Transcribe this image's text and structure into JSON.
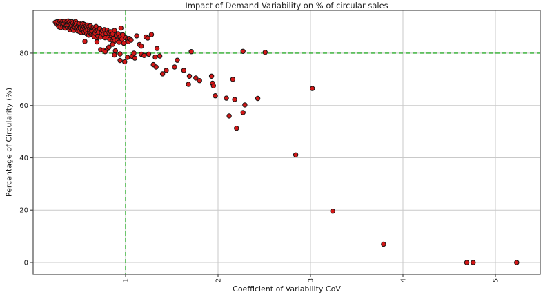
{
  "chart_data": {
    "type": "scatter",
    "title": "Impact of Demand Variability on % of circular sales",
    "xlabel": "Coefficient of Variability CoV",
    "ylabel": "Percentage of Circularity (%)",
    "x_ticks": [
      1,
      2,
      3,
      4,
      5
    ],
    "y_ticks": [
      0,
      20,
      40,
      60,
      80
    ],
    "xlim": [
      0.0,
      5.485
    ],
    "ylim": [
      -4.49,
      96.35
    ],
    "grid": true,
    "legend": "none",
    "x_tick_rotation": "vertical",
    "reference_lines": [
      {
        "orientation": "vertical",
        "x": 1,
        "style": "dashed"
      },
      {
        "orientation": "horizontal",
        "y": 80,
        "style": "dashed"
      }
    ],
    "colors": {
      "marker_fill": "#d31717",
      "marker_edge": "#141414",
      "reference_line": "#2fae2f",
      "grid": "#c9c9c9",
      "spine": "#4c4c4c",
      "text": "#1c1c1c"
    },
    "points": [
      [
        0.24,
        91.8
      ],
      [
        0.25,
        91.2
      ],
      [
        0.26,
        92.0
      ],
      [
        0.27,
        90.6
      ],
      [
        0.28,
        91.5
      ],
      [
        0.28,
        90.1
      ],
      [
        0.29,
        92.2
      ],
      [
        0.3,
        91.0
      ],
      [
        0.3,
        89.8
      ],
      [
        0.31,
        91.7
      ],
      [
        0.32,
        90.4
      ],
      [
        0.32,
        92.0
      ],
      [
        0.33,
        91.3
      ],
      [
        0.34,
        90.2
      ],
      [
        0.34,
        92.1
      ],
      [
        0.35,
        91.0
      ],
      [
        0.35,
        89.6
      ],
      [
        0.36,
        91.8
      ],
      [
        0.36,
        90.5
      ],
      [
        0.37,
        91.4
      ],
      [
        0.37,
        89.9
      ],
      [
        0.38,
        92.3
      ],
      [
        0.38,
        90.8
      ],
      [
        0.39,
        91.6
      ],
      [
        0.39,
        89.3
      ],
      [
        0.4,
        90.9
      ],
      [
        0.4,
        92.0
      ],
      [
        0.4,
        88.9
      ],
      [
        0.41,
        91.2
      ],
      [
        0.41,
        89.7
      ],
      [
        0.42,
        90.6
      ],
      [
        0.42,
        92.0
      ],
      [
        0.43,
        89.2
      ],
      [
        0.43,
        91.5
      ],
      [
        0.44,
        90.1
      ],
      [
        0.44,
        88.7
      ],
      [
        0.45,
        91.0
      ],
      [
        0.45,
        89.9
      ],
      [
        0.46,
        90.7
      ],
      [
        0.46,
        92.1
      ],
      [
        0.47,
        89.4
      ],
      [
        0.47,
        91.3
      ],
      [
        0.48,
        90.0
      ],
      [
        0.48,
        88.5
      ],
      [
        0.49,
        90.8
      ],
      [
        0.49,
        89.1
      ],
      [
        0.5,
        91.4
      ],
      [
        0.5,
        88.3
      ],
      [
        0.51,
        90.2
      ],
      [
        0.51,
        89.6
      ],
      [
        0.52,
        91.0
      ],
      [
        0.52,
        87.9
      ],
      [
        0.53,
        90.5
      ],
      [
        0.53,
        88.8
      ],
      [
        0.54,
        91.2
      ],
      [
        0.54,
        89.3
      ],
      [
        0.55,
        90.0
      ],
      [
        0.55,
        88.1
      ],
      [
        0.56,
        90.9
      ],
      [
        0.56,
        89.5
      ],
      [
        0.57,
        90.3
      ],
      [
        0.57,
        88.6
      ],
      [
        0.58,
        89.9
      ],
      [
        0.58,
        87.4
      ],
      [
        0.59,
        90.7
      ],
      [
        0.59,
        88.9
      ],
      [
        0.6,
        90.1
      ],
      [
        0.6,
        86.9
      ],
      [
        0.61,
        89.5
      ],
      [
        0.61,
        88.2
      ],
      [
        0.62,
        90.4
      ],
      [
        0.62,
        87.7
      ],
      [
        0.63,
        89.0
      ],
      [
        0.63,
        87.2
      ],
      [
        0.64,
        89.8
      ],
      [
        0.64,
        88.4
      ],
      [
        0.65,
        89.6
      ],
      [
        0.65,
        87.0
      ],
      [
        0.66,
        88.8
      ],
      [
        0.66,
        86.3
      ],
      [
        0.67,
        89.3
      ],
      [
        0.67,
        87.6
      ],
      [
        0.68,
        88.5
      ],
      [
        0.68,
        90.2
      ],
      [
        0.69,
        87.1
      ],
      [
        0.69,
        85.8
      ],
      [
        0.7,
        88.9
      ],
      [
        0.7,
        86.6
      ],
      [
        0.71,
        88.0
      ],
      [
        0.72,
        89.4
      ],
      [
        0.73,
        86.1
      ],
      [
        0.74,
        87.8
      ],
      [
        0.75,
        88.6
      ],
      [
        0.76,
        87.2
      ],
      [
        0.77,
        89.0
      ],
      [
        0.78,
        85.9
      ],
      [
        0.79,
        87.5
      ],
      [
        0.8,
        88.8
      ],
      [
        0.81,
        86.0
      ],
      [
        0.82,
        87.9
      ],
      [
        0.83,
        85.2
      ],
      [
        0.84,
        88.2
      ],
      [
        0.85,
        86.7
      ],
      [
        0.86,
        84.9
      ],
      [
        0.86,
        87.3
      ],
      [
        0.87,
        85.6
      ],
      [
        0.88,
        88.7
      ],
      [
        0.88,
        84.6
      ],
      [
        0.9,
        86.9
      ],
      [
        0.91,
        85.0
      ],
      [
        0.92,
        87.4
      ],
      [
        0.93,
        84.2
      ],
      [
        0.94,
        86.2
      ],
      [
        0.95,
        89.6
      ],
      [
        0.96,
        85.4
      ],
      [
        0.97,
        87.0
      ],
      [
        0.98,
        83.8
      ],
      [
        1.0,
        85.9
      ],
      [
        1.02,
        85.3
      ],
      [
        1.03,
        84.4
      ],
      [
        1.04,
        85.6
      ],
      [
        1.06,
        85.0
      ],
      [
        0.56,
        84.5
      ],
      [
        0.69,
        84.3
      ],
      [
        0.73,
        81.3
      ],
      [
        0.76,
        81.2
      ],
      [
        0.78,
        80.6
      ],
      [
        0.81,
        81.8
      ],
      [
        0.82,
        82.3
      ],
      [
        0.86,
        83.4
      ],
      [
        0.88,
        79.3
      ],
      [
        0.89,
        80.9
      ],
      [
        0.94,
        79.7
      ],
      [
        0.94,
        77.2
      ],
      [
        0.99,
        76.7
      ],
      [
        1.02,
        78.4
      ],
      [
        1.07,
        78.8
      ],
      [
        1.09,
        80.0
      ],
      [
        1.1,
        78.1
      ],
      [
        1.12,
        86.6
      ],
      [
        1.15,
        83.3
      ],
      [
        1.17,
        82.7
      ],
      [
        1.17,
        79.6
      ],
      [
        1.2,
        79.1
      ],
      [
        1.22,
        86.2
      ],
      [
        1.24,
        85.8
      ],
      [
        1.25,
        79.6
      ],
      [
        1.28,
        87.1
      ],
      [
        1.3,
        75.6
      ],
      [
        1.32,
        78.5
      ],
      [
        1.33,
        74.7
      ],
      [
        1.34,
        81.8
      ],
      [
        1.37,
        78.9
      ],
      [
        1.4,
        72.1
      ],
      [
        1.44,
        73.4
      ],
      [
        1.53,
        74.7
      ],
      [
        1.56,
        77.3
      ],
      [
        1.63,
        73.4
      ],
      [
        1.68,
        68.1
      ],
      [
        1.69,
        71.2
      ],
      [
        1.71,
        80.6
      ],
      [
        1.76,
        70.5
      ],
      [
        1.8,
        69.5
      ],
      [
        1.93,
        71.2
      ],
      [
        1.94,
        68.5
      ],
      [
        1.95,
        67.5
      ],
      [
        1.97,
        63.7
      ],
      [
        2.09,
        62.8
      ],
      [
        2.12,
        56.0
      ],
      [
        2.16,
        70.0
      ],
      [
        2.18,
        62.3
      ],
      [
        2.2,
        51.3
      ],
      [
        2.27,
        57.3
      ],
      [
        2.27,
        80.7
      ],
      [
        2.29,
        60.2
      ],
      [
        2.43,
        62.7
      ],
      [
        2.51,
        80.3
      ],
      [
        2.84,
        41.1
      ],
      [
        3.02,
        66.5
      ],
      [
        3.24,
        19.6
      ],
      [
        3.79,
        7.0
      ],
      [
        4.69,
        0.0
      ],
      [
        4.76,
        0.0
      ],
      [
        5.23,
        0.0
      ]
    ]
  }
}
